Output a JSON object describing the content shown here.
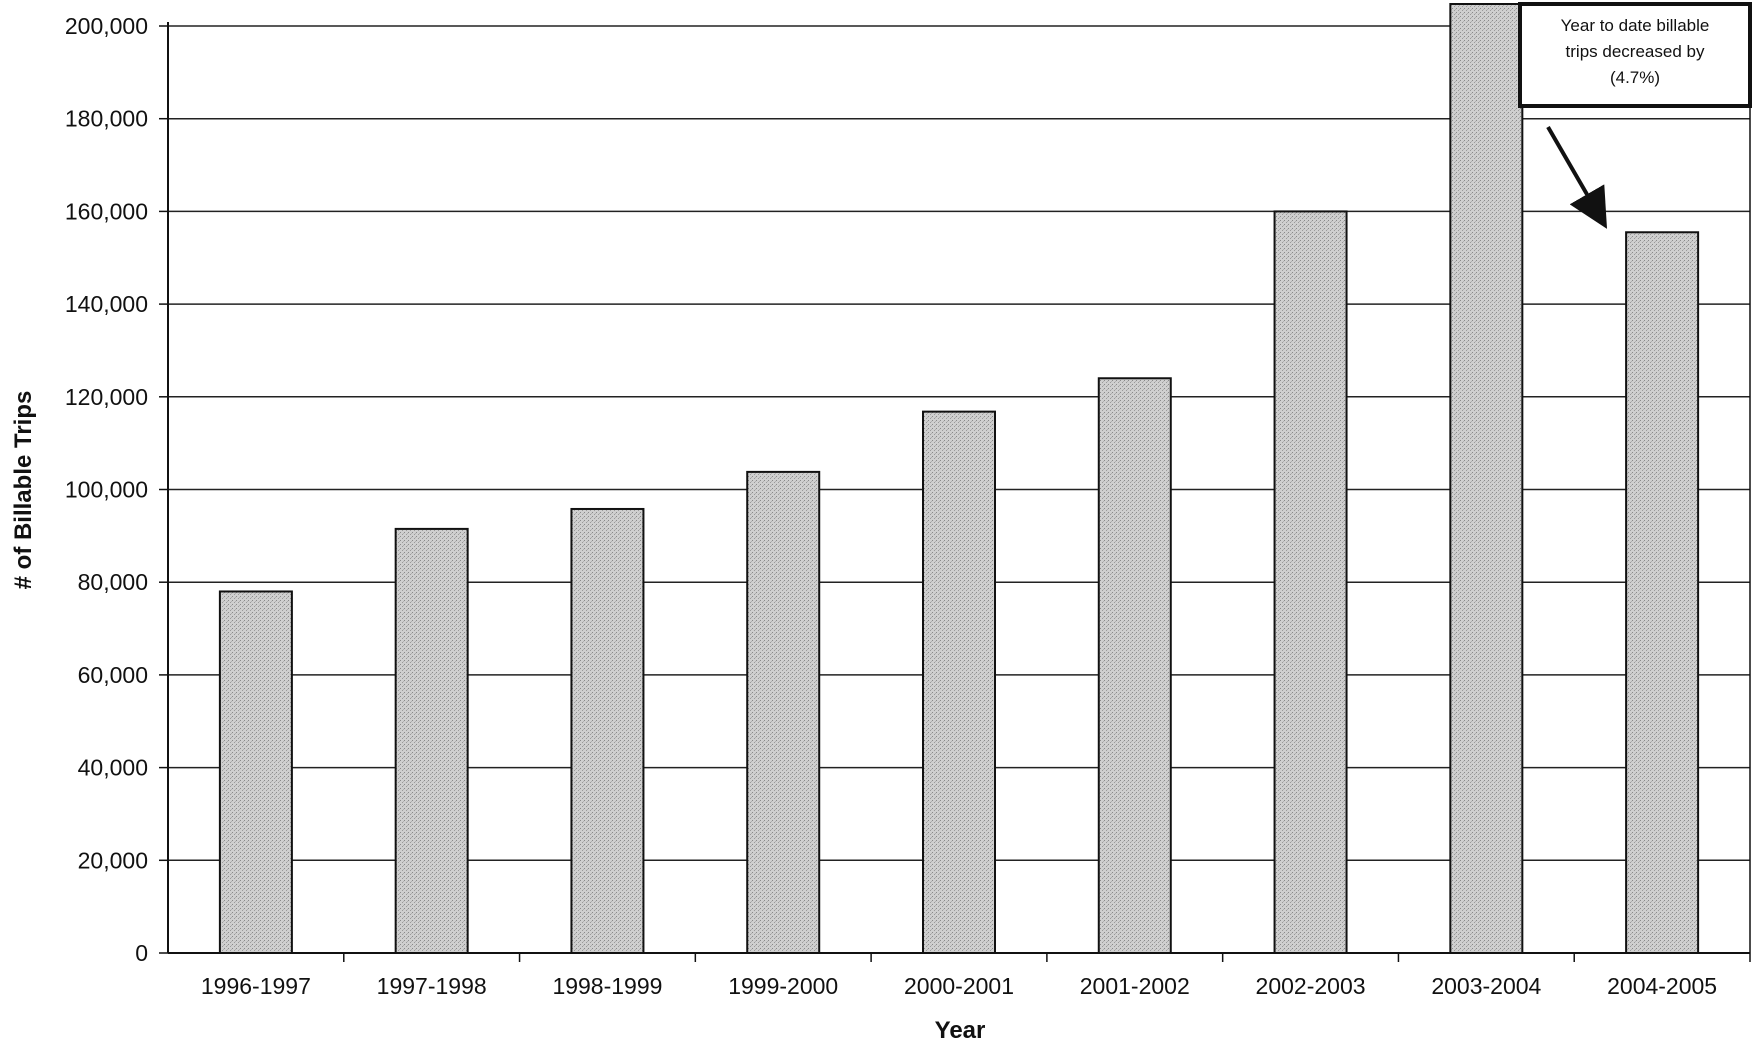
{
  "chart_data": {
    "type": "bar",
    "categories": [
      "1996-1997",
      "1997-1998",
      "1998-1999",
      "1999-2000",
      "2000-2001",
      "2001-2002",
      "2002-2003",
      "2003-2004",
      "2004-2005"
    ],
    "series": [
      {
        "values": [
          78000,
          91500,
          95800,
          103800,
          116800,
          124000,
          160000,
          207000,
          155500
        ]
      }
    ],
    "xlabel": "Year",
    "ylabel": "# of Billable Trips",
    "ylim": [
      0,
      200000
    ],
    "yticks": [
      "0",
      "20,000",
      "40,000",
      "60,000",
      "80,000",
      "100,000",
      "120,000",
      "140,000",
      "160,000",
      "180,000",
      "200,000"
    ],
    "grid": true,
    "annotation": {
      "lines": [
        "Year to date  billable",
        "trips decreased by",
        "(4.7%)"
      ],
      "points_to": "2004-2005"
    },
    "colors": {
      "bar": "#c8c8c8",
      "bar_edge": "#111111",
      "grid": "#222222"
    }
  }
}
